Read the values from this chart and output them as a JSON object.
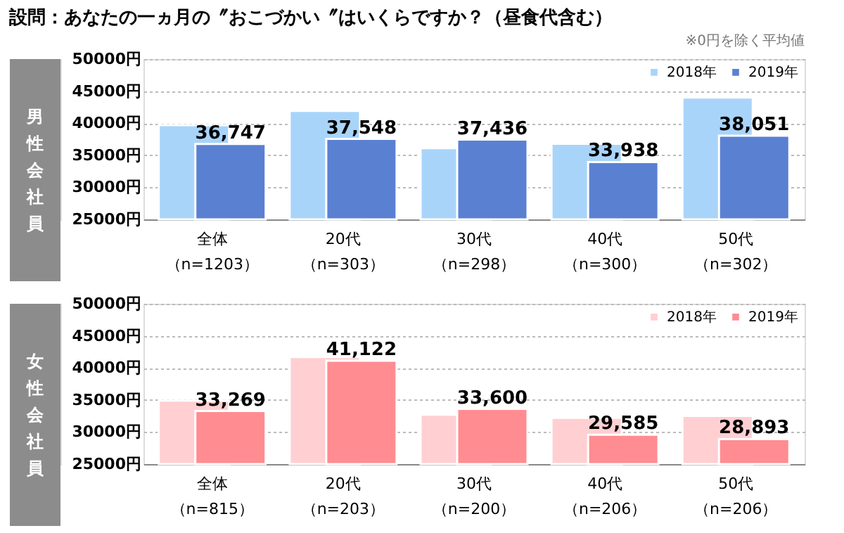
{
  "chart_data": [
    {
      "type": "bar",
      "title": "設問：あなたの一ヵ月の〞おこづかい〞はいくらですか？（昼食代含む）",
      "annotations": [
        "※0円を除く平均値"
      ],
      "ylabel": "男性会社員",
      "categories": [
        "全体（n=1203）",
        "20代（n=303）",
        "30代（n=298）",
        "40代（n=300）",
        "50代（n=302）"
      ],
      "series": [
        {
          "name": "2018年",
          "color": "#a9d4fa",
          "values": [
            39700,
            41900,
            36100,
            36800,
            44000
          ]
        },
        {
          "name": "2019年",
          "color": "#5a80d2",
          "values": [
            36747,
            37548,
            37436,
            33938,
            38051
          ],
          "value_labels": [
            "36,747",
            "37,548",
            "37,436",
            "33,938",
            "38,051"
          ]
        }
      ],
      "ylim": [
        25000,
        50000
      ],
      "yticks": [
        {
          "value": 25000,
          "label": "25000円"
        },
        {
          "value": 30000,
          "label": "30000円"
        },
        {
          "value": 35000,
          "label": "35000円"
        },
        {
          "value": 40000,
          "label": "40000円"
        },
        {
          "value": 45000,
          "label": "45000円"
        },
        {
          "value": 50000,
          "label": "50000円"
        }
      ],
      "grid": "y",
      "legend": "top right"
    },
    {
      "type": "bar",
      "ylabel": "女性会社員",
      "categories": [
        "全体（n=815）",
        "20代（n=203）",
        "30代（n=200）",
        "40代（n=206）",
        "50代（n=206）"
      ],
      "series": [
        {
          "name": "2018年",
          "color": "#ffcfd2",
          "values": [
            34900,
            41700,
            32700,
            32200,
            32500
          ]
        },
        {
          "name": "2019年",
          "color": "#ff8c91",
          "values": [
            33269,
            41122,
            33600,
            29585,
            28893
          ],
          "value_labels": [
            "33,269",
            "41,122",
            "33,600",
            "29,585",
            "28,893"
          ]
        }
      ],
      "ylim": [
        25000,
        50000
      ],
      "yticks": [
        {
          "value": 25000,
          "label": "25000円"
        },
        {
          "value": 30000,
          "label": "30000円"
        },
        {
          "value": 35000,
          "label": "35000円"
        },
        {
          "value": 40000,
          "label": "40000円"
        },
        {
          "value": 45000,
          "label": "45000円"
        },
        {
          "value": 50000,
          "label": "50000円"
        }
      ],
      "grid": "y",
      "legend": "top right"
    }
  ]
}
